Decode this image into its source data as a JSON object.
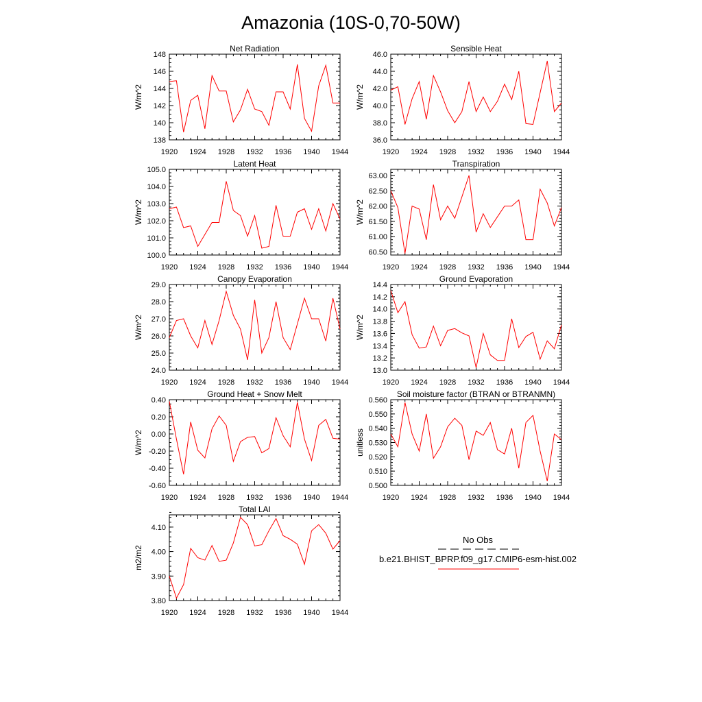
{
  "title": "Amazonia (10S-0,70-50W)",
  "colors": {
    "model_line": "#ff0000",
    "obs_line": "#000000"
  },
  "legend": {
    "obs_label": "No Obs",
    "model_label": "b.e21.BHIST_BPRP.f09_g17.CMIP6-esm-hist.002"
  },
  "chart_data": [
    {
      "type": "line",
      "title": "Net Radiation",
      "xlabel": "",
      "ylabel": "W/m^2",
      "xlim": [
        1920,
        1944
      ],
      "ylim": [
        138,
        148
      ],
      "x_ticks": [
        1920,
        1924,
        1928,
        1932,
        1936,
        1940,
        1944
      ],
      "y_ticks": [
        138,
        140,
        142,
        144,
        146,
        148
      ],
      "y_tick_labels": [
        "138",
        "140",
        "142",
        "144",
        "146",
        "148"
      ],
      "y_minor_step": 0.5,
      "series": [
        {
          "x": [
            1920,
            1921,
            1922,
            1923,
            1924,
            1925,
            1926,
            1927,
            1928,
            1929,
            1930,
            1931,
            1932,
            1933,
            1934,
            1935,
            1936,
            1937,
            1938,
            1939,
            1940,
            1941,
            1942,
            1943,
            1944
          ],
          "values": [
            144.8,
            144.9,
            138.9,
            142.6,
            143.2,
            139.3,
            145.5,
            143.7,
            143.7,
            140.1,
            141.5,
            143.9,
            141.6,
            141.3,
            139.7,
            143.6,
            143.6,
            141.6,
            146.8,
            140.5,
            139.0,
            144.3,
            146.7,
            142.3,
            142.3
          ]
        }
      ]
    },
    {
      "type": "line",
      "title": "Sensible Heat",
      "xlabel": "",
      "ylabel": "W/m^2",
      "xlim": [
        1920,
        1944
      ],
      "ylim": [
        36.0,
        46.0
      ],
      "x_ticks": [
        1920,
        1924,
        1928,
        1932,
        1936,
        1940,
        1944
      ],
      "y_ticks": [
        36,
        38,
        40,
        42,
        44,
        46
      ],
      "y_tick_labels": [
        "36.0",
        "38.0",
        "40.0",
        "42.0",
        "44.0",
        "46.0"
      ],
      "y_minor_step": 0.5,
      "series": [
        {
          "x": [
            1920,
            1921,
            1922,
            1923,
            1924,
            1925,
            1926,
            1927,
            1928,
            1929,
            1930,
            1931,
            1932,
            1933,
            1934,
            1935,
            1936,
            1937,
            1938,
            1939,
            1940,
            1941,
            1942,
            1943,
            1944
          ],
          "values": [
            41.8,
            42.2,
            37.8,
            40.8,
            42.8,
            38.4,
            43.5,
            41.6,
            39.4,
            38.0,
            39.3,
            42.8,
            39.3,
            41.0,
            39.3,
            40.5,
            42.5,
            40.7,
            44.0,
            37.9,
            37.8,
            41.5,
            45.2,
            39.3,
            40.3
          ]
        }
      ]
    },
    {
      "type": "line",
      "title": "Latent Heat",
      "xlabel": "",
      "ylabel": "W/m^2",
      "xlim": [
        1920,
        1944
      ],
      "ylim": [
        100.0,
        105.0
      ],
      "x_ticks": [
        1920,
        1924,
        1928,
        1932,
        1936,
        1940,
        1944
      ],
      "y_ticks": [
        100,
        101,
        102,
        103,
        104,
        105
      ],
      "y_tick_labels": [
        "100.0",
        "101.0",
        "102.0",
        "103.0",
        "104.0",
        "105.0"
      ],
      "y_minor_step": 0.2,
      "series": [
        {
          "x": [
            1920,
            1921,
            1922,
            1923,
            1924,
            1925,
            1926,
            1927,
            1928,
            1929,
            1930,
            1931,
            1932,
            1933,
            1934,
            1935,
            1936,
            1937,
            1938,
            1939,
            1940,
            1941,
            1942,
            1943,
            1944
          ],
          "values": [
            102.7,
            102.8,
            101.6,
            101.7,
            100.5,
            101.2,
            101.9,
            101.9,
            104.3,
            102.6,
            102.3,
            101.1,
            102.3,
            100.4,
            100.5,
            102.9,
            101.1,
            101.1,
            102.5,
            102.7,
            101.5,
            102.7,
            101.4,
            103.0,
            102.1
          ]
        }
      ]
    },
    {
      "type": "line",
      "title": "Transpiration",
      "xlabel": "",
      "ylabel": "W/m^2",
      "xlim": [
        1920,
        1944
      ],
      "ylim": [
        60.4,
        63.2
      ],
      "x_ticks": [
        1920,
        1924,
        1928,
        1932,
        1936,
        1940,
        1944
      ],
      "y_ticks": [
        60.5,
        61.0,
        61.5,
        62.0,
        62.5,
        63.0
      ],
      "y_tick_labels": [
        "60.50",
        "61.00",
        "61.50",
        "62.00",
        "62.50",
        "63.00"
      ],
      "y_minor_step": 0.1,
      "series": [
        {
          "x": [
            1920,
            1921,
            1922,
            1923,
            1924,
            1925,
            1926,
            1927,
            1928,
            1929,
            1930,
            1931,
            1932,
            1933,
            1934,
            1935,
            1936,
            1937,
            1938,
            1939,
            1940,
            1941,
            1942,
            1943,
            1944
          ],
          "values": [
            62.5,
            61.95,
            60.45,
            62.0,
            61.9,
            60.9,
            62.7,
            61.55,
            62.0,
            61.6,
            62.3,
            63.0,
            61.15,
            61.75,
            61.3,
            61.65,
            62.0,
            62.0,
            62.2,
            60.9,
            60.9,
            62.55,
            62.1,
            61.35,
            61.95
          ]
        }
      ]
    },
    {
      "type": "line",
      "title": "Canopy Evaporation",
      "xlabel": "",
      "ylabel": "W/m^2",
      "xlim": [
        1920,
        1944
      ],
      "ylim": [
        24.0,
        29.0
      ],
      "x_ticks": [
        1920,
        1924,
        1928,
        1932,
        1936,
        1940,
        1944
      ],
      "y_ticks": [
        24,
        25,
        26,
        27,
        28,
        29
      ],
      "y_tick_labels": [
        "24.0",
        "25.0",
        "26.0",
        "27.0",
        "28.0",
        "29.0"
      ],
      "y_minor_step": 0.2,
      "series": [
        {
          "x": [
            1920,
            1921,
            1922,
            1923,
            1924,
            1925,
            1926,
            1927,
            1928,
            1929,
            1930,
            1931,
            1932,
            1933,
            1934,
            1935,
            1936,
            1937,
            1938,
            1939,
            1940,
            1941,
            1942,
            1943,
            1944
          ],
          "values": [
            25.9,
            26.9,
            27.0,
            26.0,
            25.3,
            26.9,
            25.5,
            26.9,
            28.6,
            27.2,
            26.4,
            24.6,
            28.1,
            25.0,
            25.9,
            28.0,
            25.9,
            25.2,
            26.7,
            28.2,
            27.0,
            27.0,
            25.7,
            28.2,
            26.4
          ]
        }
      ]
    },
    {
      "type": "line",
      "title": "Ground Evaporation",
      "xlabel": "",
      "ylabel": "W/m^2",
      "xlim": [
        1920,
        1944
      ],
      "ylim": [
        13.0,
        14.4
      ],
      "x_ticks": [
        1920,
        1924,
        1928,
        1932,
        1936,
        1940,
        1944
      ],
      "y_ticks": [
        13.0,
        13.2,
        13.4,
        13.6,
        13.8,
        14.0,
        14.2,
        14.4
      ],
      "y_tick_labels": [
        "13.0",
        "13.2",
        "13.4",
        "13.6",
        "13.8",
        "14.0",
        "14.2",
        "14.4"
      ],
      "y_minor_step": 0.05,
      "series": [
        {
          "x": [
            1920,
            1921,
            1922,
            1923,
            1924,
            1925,
            1926,
            1927,
            1928,
            1929,
            1930,
            1931,
            1932,
            1933,
            1934,
            1935,
            1936,
            1937,
            1938,
            1939,
            1940,
            1941,
            1942,
            1943,
            1944
          ],
          "values": [
            14.3,
            13.94,
            14.12,
            13.58,
            13.36,
            13.38,
            13.72,
            13.4,
            13.65,
            13.68,
            13.61,
            13.56,
            13.04,
            13.6,
            13.25,
            13.16,
            13.16,
            13.84,
            13.37,
            13.55,
            13.62,
            13.18,
            13.48,
            13.35,
            13.74
          ]
        }
      ]
    },
    {
      "type": "line",
      "title": "Ground Heat + Snow Melt",
      "xlabel": "",
      "ylabel": "W/m^2",
      "xlim": [
        1920,
        1944
      ],
      "ylim": [
        -0.6,
        0.4
      ],
      "x_ticks": [
        1920,
        1924,
        1928,
        1932,
        1936,
        1940,
        1944
      ],
      "y_ticks": [
        -0.6,
        -0.4,
        -0.2,
        0.0,
        0.2,
        0.4
      ],
      "y_tick_labels": [
        "-0.60",
        "-0.40",
        "-0.20",
        "0.00",
        "0.20",
        "0.40"
      ],
      "y_minor_step": 0.05,
      "series": [
        {
          "x": [
            1920,
            1921,
            1922,
            1923,
            1924,
            1925,
            1926,
            1927,
            1928,
            1929,
            1930,
            1931,
            1932,
            1933,
            1934,
            1935,
            1936,
            1937,
            1938,
            1939,
            1940,
            1941,
            1942,
            1943,
            1944
          ],
          "values": [
            0.38,
            -0.06,
            -0.47,
            0.14,
            -0.19,
            -0.28,
            0.06,
            0.21,
            0.1,
            -0.32,
            -0.09,
            -0.04,
            -0.03,
            -0.22,
            -0.17,
            0.19,
            -0.02,
            -0.15,
            0.37,
            -0.06,
            -0.31,
            0.1,
            0.17,
            -0.05,
            -0.06
          ]
        }
      ]
    },
    {
      "type": "line",
      "title": "Soil moisture factor (BTRAN or BTRANMN)",
      "xlabel": "",
      "ylabel": "unitless",
      "xlim": [
        1920,
        1944
      ],
      "ylim": [
        0.5,
        0.56
      ],
      "x_ticks": [
        1920,
        1924,
        1928,
        1932,
        1936,
        1940,
        1944
      ],
      "y_ticks": [
        0.5,
        0.51,
        0.52,
        0.53,
        0.54,
        0.55,
        0.56
      ],
      "y_tick_labels": [
        "0.500",
        "0.510",
        "0.520",
        "0.530",
        "0.540",
        "0.550",
        "0.560"
      ],
      "y_minor_step": 0.002,
      "series": [
        {
          "x": [
            1920,
            1921,
            1922,
            1923,
            1924,
            1925,
            1926,
            1927,
            1928,
            1929,
            1930,
            1931,
            1932,
            1933,
            1934,
            1935,
            1936,
            1937,
            1938,
            1939,
            1940,
            1941,
            1942,
            1943,
            1944
          ],
          "values": [
            0.536,
            0.527,
            0.558,
            0.536,
            0.524,
            0.55,
            0.519,
            0.527,
            0.541,
            0.547,
            0.542,
            0.518,
            0.538,
            0.535,
            0.544,
            0.525,
            0.522,
            0.54,
            0.512,
            0.544,
            0.549,
            0.524,
            0.503,
            0.536,
            0.532
          ]
        }
      ]
    },
    {
      "type": "line",
      "title": "Total LAI",
      "xlabel": "",
      "ylabel": "m2/m2",
      "xlim": [
        1920,
        1944
      ],
      "ylim": [
        3.8,
        4.15
      ],
      "x_ticks": [
        1920,
        1924,
        1928,
        1932,
        1936,
        1940,
        1944
      ],
      "y_ticks": [
        3.8,
        3.9,
        4.0,
        4.1
      ],
      "y_tick_labels": [
        "3.80",
        "3.90",
        "4.00",
        "4.10"
      ],
      "y_minor_step": 0.02,
      "series": [
        {
          "x": [
            1920,
            1921,
            1922,
            1923,
            1924,
            1925,
            1926,
            1927,
            1928,
            1929,
            1930,
            1931,
            1932,
            1933,
            1934,
            1935,
            1936,
            1937,
            1938,
            1939,
            1940,
            1941,
            1942,
            1943,
            1944
          ],
          "values": [
            3.9,
            3.81,
            3.865,
            4.013,
            3.975,
            3.965,
            4.025,
            3.96,
            3.965,
            4.035,
            4.14,
            4.11,
            4.023,
            4.028,
            4.085,
            4.135,
            4.065,
            4.05,
            4.03,
            3.948,
            4.085,
            4.11,
            4.075,
            4.01,
            4.045
          ]
        }
      ]
    }
  ]
}
